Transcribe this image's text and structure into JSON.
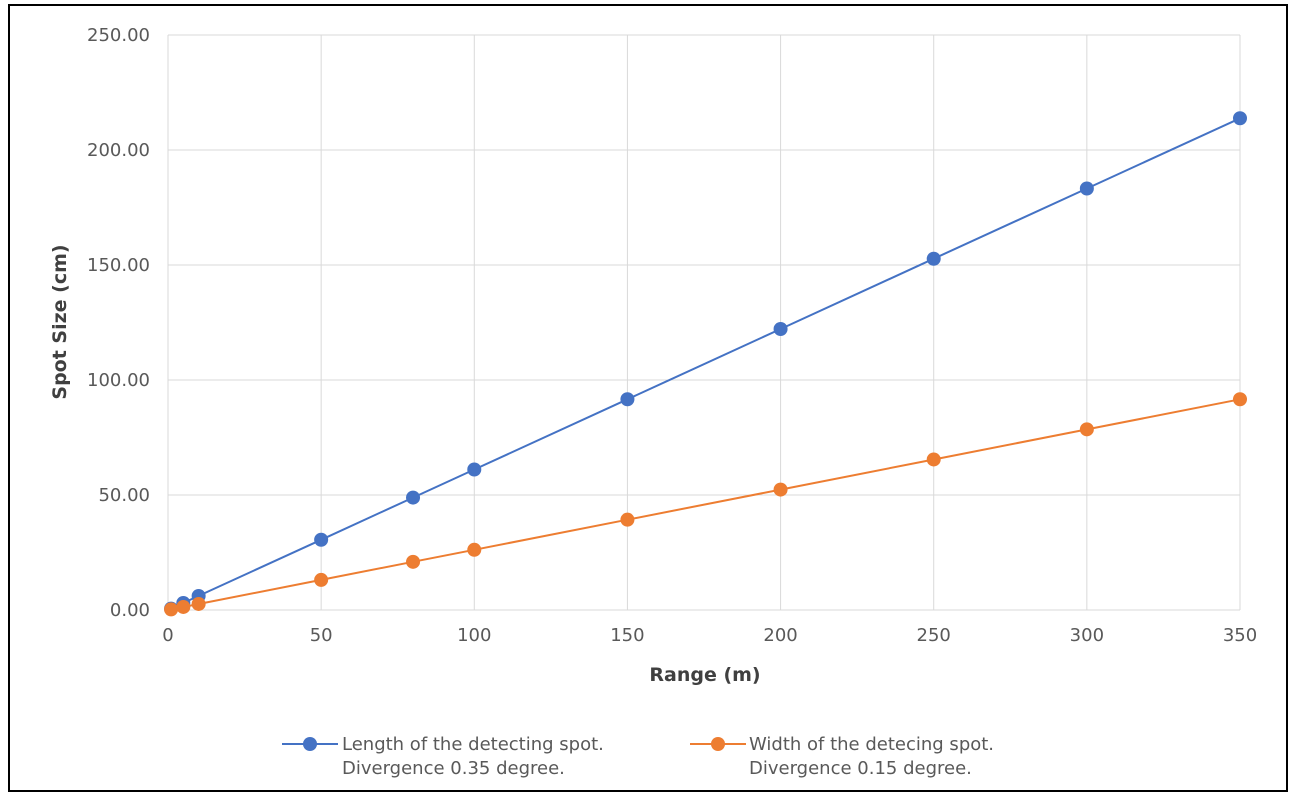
{
  "chart_data": {
    "type": "line",
    "title": "",
    "xlabel": "Range (m)",
    "ylabel": "Spot Size (cm)",
    "xlim": [
      0,
      350
    ],
    "ylim": [
      0,
      250
    ],
    "x_ticks": [
      0,
      50,
      100,
      150,
      200,
      250,
      300,
      350
    ],
    "y_ticks": [
      0,
      50,
      100,
      150,
      200,
      250
    ],
    "x_tick_labels": [
      "0",
      "50",
      "100",
      "150",
      "200",
      "250",
      "300",
      "350"
    ],
    "y_tick_labels": [
      "0.00",
      "50.00",
      "100.00",
      "150.00",
      "200.00",
      "250.00"
    ],
    "grid": true,
    "legend_position": "bottom",
    "series": [
      {
        "name_lines": [
          "Length of the detecting spot.",
          "Divergence 0.35 degree."
        ],
        "color": "#4472C4",
        "x": [
          1,
          5,
          10,
          50,
          80,
          100,
          150,
          200,
          250,
          300,
          350
        ],
        "y": [
          0.61,
          3.05,
          6.11,
          30.54,
          48.87,
          61.09,
          91.63,
          122.17,
          152.72,
          183.26,
          213.8
        ]
      },
      {
        "name_lines": [
          "Width of the detecing spot.",
          "Divergence 0.15 degree."
        ],
        "color": "#ED7D31",
        "x": [
          1,
          5,
          10,
          50,
          80,
          100,
          150,
          200,
          250,
          300,
          350
        ],
        "y": [
          0.26,
          1.31,
          2.62,
          13.09,
          20.94,
          26.18,
          39.27,
          52.36,
          65.45,
          78.54,
          91.63
        ]
      }
    ]
  }
}
